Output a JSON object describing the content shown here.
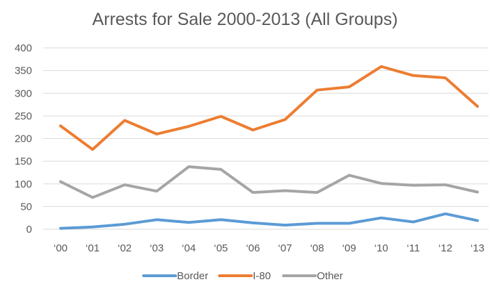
{
  "chart_data": {
    "type": "line",
    "title": "Arrests for Sale 2000-2013 (All Groups)",
    "xlabel": "",
    "ylabel": "",
    "categories": [
      "‘00",
      "‘01",
      "‘02",
      "‘03",
      "‘04",
      "‘05",
      "‘06",
      "‘07",
      "‘08",
      "‘09",
      "‘10",
      "‘11",
      "‘12",
      "‘13"
    ],
    "ylim": [
      0,
      400
    ],
    "yticks": [
      0,
      50,
      100,
      150,
      200,
      250,
      300,
      350,
      400
    ],
    "ytick_labels": [
      "0",
      "50",
      "100",
      "150",
      "200",
      "250",
      "300",
      "350",
      "400"
    ],
    "grid": true,
    "legend_position": "bottom",
    "series": [
      {
        "name": "Border",
        "color": "#5B9BD5",
        "values": [
          2,
          5,
          11,
          21,
          15,
          21,
          14,
          9,
          13,
          13,
          25,
          16,
          34,
          19
        ]
      },
      {
        "name": "I-80",
        "color": "#ED7D31",
        "values": [
          228,
          176,
          240,
          210,
          227,
          249,
          219,
          242,
          307,
          314,
          359,
          339,
          334,
          271
        ]
      },
      {
        "name": "Other",
        "color": "#A5A5A5",
        "values": [
          105,
          70,
          98,
          84,
          138,
          132,
          81,
          85,
          81,
          119,
          101,
          97,
          98,
          82
        ]
      }
    ]
  }
}
